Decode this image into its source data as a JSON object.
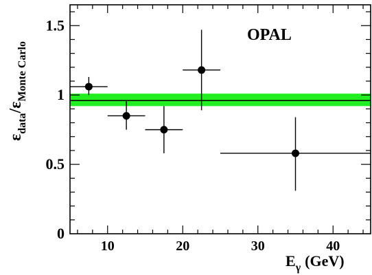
{
  "chart_data": {
    "type": "scatter",
    "annotation": "OPAL",
    "xlabel": {
      "main": "E",
      "sub": "γ",
      "unit": "(GeV)"
    },
    "ylabel": {
      "num_main": "ε",
      "num_sub": "data",
      "slash": "/",
      "den_main": "ε",
      "den_sub": "Monte Carlo"
    },
    "xlim": [
      5,
      45
    ],
    "ylim": [
      0,
      1.65
    ],
    "xticks": [
      10,
      20,
      30,
      40
    ],
    "yticks": [
      0,
      0.5,
      1,
      1.5
    ],
    "ytick_labels": [
      "0",
      "0.5",
      "1",
      "1.5"
    ],
    "xtick_labels": [
      "10",
      "20",
      "30",
      "40"
    ],
    "band": {
      "center": 0.96,
      "low": 0.92,
      "high": 1.01,
      "color": "#22ee22"
    },
    "points": [
      {
        "x": 7.5,
        "xlo": 5,
        "xhi": 10,
        "y": 1.06,
        "ylo": 1.0,
        "yhi": 1.13
      },
      {
        "x": 12.5,
        "xlo": 10,
        "xhi": 15,
        "y": 0.85,
        "ylo": 0.75,
        "yhi": 0.96
      },
      {
        "x": 17.5,
        "xlo": 15,
        "xhi": 20,
        "y": 0.75,
        "ylo": 0.58,
        "yhi": 0.92
      },
      {
        "x": 22.5,
        "xlo": 20,
        "xhi": 25,
        "y": 1.18,
        "ylo": 0.89,
        "yhi": 1.47
      },
      {
        "x": 35,
        "xlo": 25,
        "xhi": 45,
        "y": 0.58,
        "ylo": 0.31,
        "yhi": 0.84
      }
    ]
  }
}
